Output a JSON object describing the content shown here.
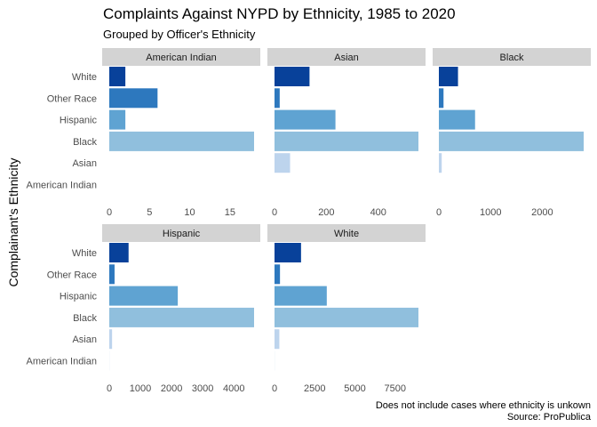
{
  "chart_data": {
    "type": "bar",
    "orientation": "horizontal",
    "title": "Complaints Against NYPD by Ethnicity, 1985 to 2020",
    "subtitle": "Grouped by Officer's Ethnicity",
    "ylabel": "Complainant's Ethnicity",
    "caption_lines": [
      "Does not include cases where ethnicity is unkown",
      "Source: ProPublica"
    ],
    "categories": [
      "White",
      "Other Race",
      "Hispanic",
      "Black",
      "Asian",
      "American Indian"
    ],
    "colors": {
      "White": "#08419a",
      "Other Race": "#2d78be",
      "Hispanic": "#5fa3d2",
      "Black": "#90bfdd",
      "Asian": "#bdd4ed",
      "American Indian": "#e8f0f9"
    },
    "strip_color": "#d3d3d3",
    "grid": false,
    "legend": "none",
    "facets": [
      {
        "name": "American Indian",
        "values": {
          "White": 2,
          "Other Race": 6,
          "Hispanic": 2,
          "Black": 18,
          "Asian": 0,
          "American Indian": 0
        },
        "xlim": [
          0,
          18
        ],
        "ticks": [
          0,
          5,
          10,
          15
        ],
        "tick_labels": [
          "0",
          "5",
          "10",
          "15"
        ]
      },
      {
        "name": "Asian",
        "values": {
          "White": 135,
          "Other Race": 20,
          "Hispanic": 235,
          "Black": 555,
          "Asian": 60,
          "American Indian": 0
        },
        "xlim": [
          0,
          555
        ],
        "ticks": [
          0,
          200,
          400
        ],
        "tick_labels": [
          "0",
          "200",
          "400"
        ]
      },
      {
        "name": "Black",
        "values": {
          "White": 370,
          "Other Race": 90,
          "Hispanic": 700,
          "Black": 2800,
          "Asian": 55,
          "American Indian": 0
        },
        "xlim": [
          0,
          2800
        ],
        "ticks": [
          0,
          1000,
          2000
        ],
        "tick_labels": [
          "0",
          "1000",
          "2000"
        ]
      },
      {
        "name": "Hispanic",
        "values": {
          "White": 620,
          "Other Race": 170,
          "Hispanic": 2200,
          "Black": 4650,
          "Asian": 90,
          "American Indian": 10
        },
        "xlim": [
          0,
          4650
        ],
        "ticks": [
          0,
          1000,
          2000,
          3000,
          4000
        ],
        "tick_labels": [
          "0",
          "1000",
          "2000",
          "3000",
          "4000"
        ]
      },
      {
        "name": "White",
        "values": {
          "White": 1650,
          "Other Race": 340,
          "Hispanic": 3250,
          "Black": 8950,
          "Asian": 300,
          "American Indian": 20
        },
        "xlim": [
          0,
          8950
        ],
        "ticks": [
          0,
          2500,
          5000,
          7500
        ],
        "tick_labels": [
          "0",
          "2500",
          "5000",
          "7500"
        ]
      }
    ]
  }
}
